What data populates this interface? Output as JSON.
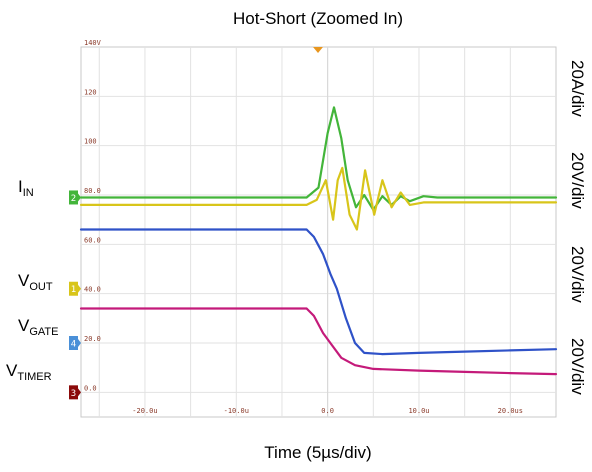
{
  "chart_data": {
    "type": "line",
    "title": "Hot-Short (Zoomed In)",
    "xlabel": "Time (5µs/div)",
    "x_unit": "µs",
    "xlim": [
      -27,
      25
    ],
    "ylim": [
      -10,
      140
    ],
    "x_tick_labels": [
      {
        "value": -20,
        "label": "-20.0u"
      },
      {
        "value": -10,
        "label": "-10.0u"
      },
      {
        "value": 0,
        "label": "0.0"
      },
      {
        "value": 10,
        "label": "10.0u"
      },
      {
        "value": 20,
        "label": "20.0us"
      }
    ],
    "y_tick_labels": [
      {
        "value": 140,
        "label": "140V"
      },
      {
        "value": 120,
        "label": "120"
      },
      {
        "value": 100,
        "label": "100"
      },
      {
        "value": 80,
        "label": "80.0"
      },
      {
        "value": 60,
        "label": "60.0"
      },
      {
        "value": 40,
        "label": "40.0"
      },
      {
        "value": 20,
        "label": "20.0"
      },
      {
        "value": 0,
        "label": "0.0"
      }
    ],
    "grid": true,
    "scale_labels": [
      "20A/div",
      "20V/div",
      "20V/div",
      "20V/div"
    ],
    "series": [
      {
        "name": "I",
        "name_sub": "IN",
        "color": "#43b53a",
        "points": [
          [
            -27,
            79
          ],
          [
            -2.3,
            79
          ],
          [
            -1,
            83
          ],
          [
            0,
            105
          ],
          [
            0.7,
            115.5
          ],
          [
            1.5,
            103
          ],
          [
            2.2,
            86
          ],
          [
            3.1,
            75
          ],
          [
            4.0,
            80
          ],
          [
            5.0,
            74
          ],
          [
            6.0,
            79.5
          ],
          [
            7.0,
            76
          ],
          [
            8.0,
            79.5
          ],
          [
            9.0,
            77.5
          ],
          [
            10.5,
            79.5
          ],
          [
            12,
            79
          ],
          [
            25,
            79
          ]
        ]
      },
      {
        "name": "V",
        "name_sub": "OUT",
        "color": "#d8c51a",
        "points": [
          [
            -27,
            76
          ],
          [
            -2.3,
            76
          ],
          [
            -1.2,
            78
          ],
          [
            -0.2,
            86
          ],
          [
            0.2,
            78
          ],
          [
            0.6,
            70
          ],
          [
            1.1,
            86
          ],
          [
            1.6,
            91
          ],
          [
            2.4,
            72
          ],
          [
            3.2,
            66
          ],
          [
            4.1,
            90
          ],
          [
            5.1,
            72
          ],
          [
            6.0,
            86
          ],
          [
            7.0,
            75
          ],
          [
            8.0,
            81
          ],
          [
            9.0,
            76
          ],
          [
            10.5,
            77
          ],
          [
            25,
            77
          ]
        ]
      },
      {
        "name": "V",
        "name_sub": "GATE",
        "color": "#2f52c8",
        "points": [
          [
            -27,
            66
          ],
          [
            -2.3,
            66
          ],
          [
            -1.5,
            63
          ],
          [
            -0.5,
            56
          ],
          [
            0.3,
            48
          ],
          [
            1,
            42
          ],
          [
            2,
            30
          ],
          [
            3,
            20
          ],
          [
            4,
            16
          ],
          [
            6,
            15.5
          ],
          [
            10,
            16
          ],
          [
            15,
            16.5
          ],
          [
            20,
            17
          ],
          [
            25,
            17.5
          ]
        ]
      },
      {
        "name": "V",
        "name_sub": "TIMER",
        "color": "#c41a7a",
        "points": [
          [
            -27,
            34
          ],
          [
            -2.3,
            34
          ],
          [
            -1.5,
            31
          ],
          [
            -0.5,
            24
          ],
          [
            0.5,
            19
          ],
          [
            1.5,
            14
          ],
          [
            3,
            11
          ],
          [
            5,
            9.5
          ],
          [
            10,
            8.8
          ],
          [
            15,
            8.3
          ],
          [
            20,
            7.8
          ],
          [
            25,
            7.4
          ]
        ]
      }
    ],
    "channel_markers": [
      {
        "marker": "2",
        "color": "#43b53a",
        "level": 79
      },
      {
        "marker": "1",
        "color": "#d8c51a",
        "level": 42
      },
      {
        "marker": "4",
        "color": "#4a90d8",
        "level": 20
      },
      {
        "marker": "3",
        "color": "#8b0a0a",
        "level": 0
      }
    ]
  }
}
